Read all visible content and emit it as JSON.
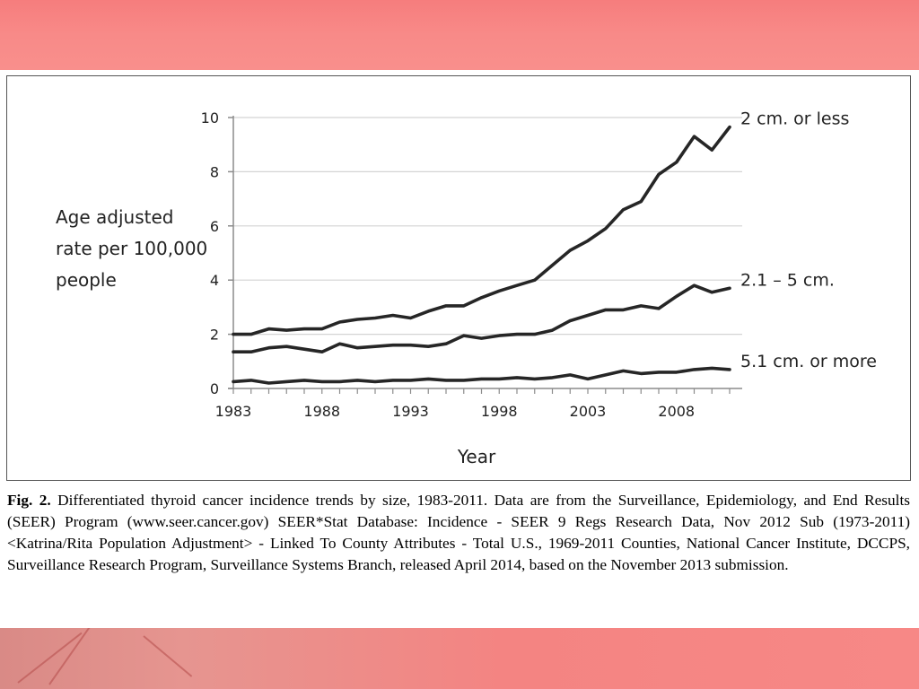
{
  "chart_data": {
    "type": "line",
    "xlabel": "Year",
    "ylabel": "Age adjusted rate per 100,000 people",
    "ylim": [
      0,
      10
    ],
    "yticks": [
      0,
      2,
      4,
      6,
      8,
      10
    ],
    "xlim": [
      1983,
      2011
    ],
    "xticks": [
      1983,
      1988,
      1993,
      1998,
      2003,
      2008
    ],
    "grid": "horizontal",
    "x": [
      1983,
      1984,
      1985,
      1986,
      1987,
      1988,
      1989,
      1990,
      1991,
      1992,
      1993,
      1994,
      1995,
      1996,
      1997,
      1998,
      1999,
      2000,
      2001,
      2002,
      2003,
      2004,
      2005,
      2006,
      2007,
      2008,
      2009,
      2010,
      2011
    ],
    "series": [
      {
        "name": "2 cm. or less",
        "values": [
          2.0,
          2.0,
          2.2,
          2.15,
          2.2,
          2.2,
          2.45,
          2.55,
          2.6,
          2.7,
          2.6,
          2.85,
          3.05,
          3.05,
          3.35,
          3.6,
          3.8,
          4.0,
          4.55,
          5.1,
          5.45,
          5.9,
          6.6,
          6.9,
          7.9,
          8.35,
          9.3,
          8.8,
          9.65
        ]
      },
      {
        "name": "2.1 – 5 cm.",
        "values": [
          1.35,
          1.35,
          1.5,
          1.55,
          1.45,
          1.35,
          1.65,
          1.5,
          1.55,
          1.6,
          1.6,
          1.55,
          1.65,
          1.95,
          1.85,
          1.95,
          2.0,
          2.0,
          2.15,
          2.5,
          2.7,
          2.9,
          2.9,
          3.05,
          2.95,
          3.4,
          3.8,
          3.55,
          3.7
        ]
      },
      {
        "name": "5.1 cm. or more",
        "values": [
          0.25,
          0.3,
          0.2,
          0.25,
          0.3,
          0.25,
          0.25,
          0.3,
          0.25,
          0.3,
          0.3,
          0.35,
          0.3,
          0.3,
          0.35,
          0.35,
          0.4,
          0.35,
          0.4,
          0.5,
          0.35,
          0.5,
          0.65,
          0.55,
          0.6,
          0.6,
          0.7,
          0.75,
          0.7
        ]
      }
    ]
  },
  "caption": {
    "fig_label": "Fig. 2.",
    "text": " Differentiated thyroid cancer incidence trends by size, 1983-2011. Data are from the Surveillance, Epidemiology, and End Results (SEER) Program (www.seer.cancer.gov) SEER*Stat Database: Incidence - SEER 9 Regs Research Data, Nov 2012 Sub (1973-2011) <Katrina/Rita Population Adjustment> - Linked To County Attributes - Total U.S., 1969-2011 Counties, National Cancer Institute, DCCPS, Surveillance Research Program, Surveillance Systems Branch, released April 2014, based on the November 2013 submission."
  },
  "colors": {
    "line": "#262626",
    "grid": "#d4d4d4",
    "axis": "#8c8c8c",
    "band": "#f88a88"
  }
}
